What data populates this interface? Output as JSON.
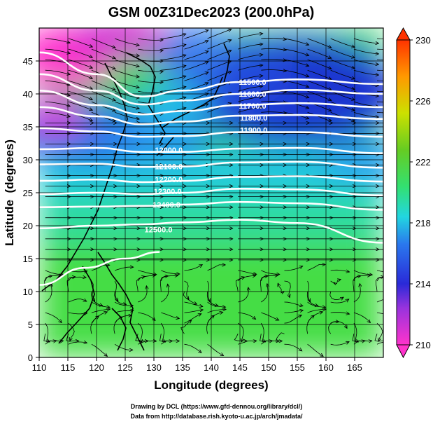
{
  "chart_data": {
    "type": "heatmap",
    "title": "GSM 00Z31Dec2023 (200.0hPa)",
    "xlabel": "Longitude (degrees)",
    "ylabel": "Latitude  (degrees)",
    "xlim": [
      110,
      170
    ],
    "ylim": [
      0,
      50
    ],
    "x_ticks": [
      110,
      115,
      120,
      125,
      130,
      135,
      140,
      145,
      150,
      155,
      160,
      165
    ],
    "y_ticks": [
      0,
      5,
      10,
      15,
      20,
      25,
      30,
      35,
      40,
      45
    ],
    "colorbar": {
      "ticks": [
        210,
        214,
        218,
        222,
        226,
        230
      ],
      "range": [
        210,
        230
      ]
    },
    "color_scale": [
      "#ff33cc",
      "#2a2ad8",
      "#2a78ee",
      "#22d6e0",
      "#33e070",
      "#66cc22",
      "#cce000",
      "#ff9900",
      "#ff3300"
    ],
    "contour_lines": [
      {
        "level": "11500.0",
        "lat_at": [
          [
            110,
            46.3
          ],
          [
            120,
            43.0
          ],
          [
            128,
            39.6
          ],
          [
            135,
            40.5
          ],
          [
            145,
            41.8
          ],
          [
            155,
            42.2
          ],
          [
            170,
            41.5
          ]
        ]
      },
      {
        "level": "11600.0",
        "lat_at": [
          [
            110,
            43.0
          ],
          [
            120,
            40.5
          ],
          [
            128,
            38.4
          ],
          [
            135,
            39.0
          ],
          [
            145,
            40.0
          ],
          [
            155,
            40.6
          ],
          [
            170,
            40.0
          ]
        ]
      },
      {
        "level": "11700.0",
        "lat_at": [
          [
            110,
            40.5
          ],
          [
            120,
            38.3
          ],
          [
            128,
            36.9
          ],
          [
            135,
            37.4
          ],
          [
            145,
            38.3
          ],
          [
            155,
            38.6
          ],
          [
            170,
            38.0
          ]
        ]
      },
      {
        "level": "11800.0",
        "lat_at": [
          [
            110,
            38.0
          ],
          [
            120,
            36.6
          ],
          [
            128,
            35.4
          ],
          [
            135,
            35.8
          ],
          [
            145,
            36.7
          ],
          [
            155,
            36.8
          ],
          [
            170,
            36.2
          ]
        ]
      },
      {
        "level": "11900.0",
        "lat_at": [
          [
            110,
            34.8
          ],
          [
            120,
            34.3
          ],
          [
            128,
            33.5
          ],
          [
            135,
            33.6
          ],
          [
            145,
            34.2
          ],
          [
            155,
            34.2
          ],
          [
            170,
            33.5
          ]
        ]
      },
      {
        "level": "12000.0",
        "lat_at": [
          [
            110,
            31.6
          ],
          [
            120,
            31.8
          ],
          [
            128,
            31.2
          ],
          [
            135,
            31.2
          ],
          [
            145,
            31.7
          ],
          [
            155,
            31.8
          ],
          [
            170,
            31.0
          ]
        ]
      },
      {
        "level": "12100.0",
        "lat_at": [
          [
            110,
            29.3
          ],
          [
            120,
            29.4
          ],
          [
            128,
            28.9
          ],
          [
            135,
            29.0
          ],
          [
            145,
            29.6
          ],
          [
            155,
            29.7
          ],
          [
            170,
            28.8
          ]
        ]
      },
      {
        "level": "12200.0",
        "lat_at": [
          [
            110,
            26.8
          ],
          [
            120,
            27.0
          ],
          [
            128,
            26.6
          ],
          [
            135,
            26.8
          ],
          [
            145,
            27.4
          ],
          [
            155,
            27.5
          ],
          [
            170,
            26.7
          ]
        ]
      },
      {
        "level": "12300.0",
        "lat_at": [
          [
            110,
            24.8
          ],
          [
            120,
            25.0
          ],
          [
            128,
            24.8
          ],
          [
            135,
            25.0
          ],
          [
            145,
            25.6
          ],
          [
            155,
            25.5
          ],
          [
            170,
            24.6
          ]
        ]
      },
      {
        "level": "12400.0",
        "lat_at": [
          [
            110,
            22.8
          ],
          [
            120,
            22.9
          ],
          [
            128,
            23.0
          ],
          [
            135,
            23.2
          ],
          [
            145,
            23.6
          ],
          [
            155,
            23.4
          ],
          [
            170,
            22.4
          ]
        ]
      },
      {
        "level": "12500.0",
        "lat_at": [
          [
            110,
            19.6
          ],
          [
            120,
            20.0
          ],
          [
            128,
            20.2
          ],
          [
            135,
            20.5
          ],
          [
            145,
            20.9
          ],
          [
            155,
            20.4
          ],
          [
            170,
            17.4
          ]
        ]
      },
      {
        "level": "",
        "lat_at": [
          [
            110,
            11.0
          ],
          [
            118,
            13.6
          ],
          [
            125,
            15.0
          ],
          [
            131,
            16.0
          ]
        ]
      }
    ],
    "contour_labels": [
      {
        "text": "11500.0",
        "lon": 147.2,
        "lat": 41.8
      },
      {
        "text": "11600.0",
        "lon": 147.2,
        "lat": 40.0
      },
      {
        "text": "11700.0",
        "lon": 147.2,
        "lat": 38.2
      },
      {
        "text": "11800.0",
        "lon": 147.4,
        "lat": 36.4
      },
      {
        "text": "11900.0",
        "lon": 147.4,
        "lat": 34.5
      },
      {
        "text": "12000.0",
        "lon": 132.6,
        "lat": 31.5
      },
      {
        "text": "12100.0",
        "lon": 132.6,
        "lat": 29.0
      },
      {
        "text": "12200.0",
        "lon": 132.6,
        "lat": 27.0
      },
      {
        "text": "12300.0",
        "lon": 132.4,
        "lat": 25.2
      },
      {
        "text": "12400.0",
        "lon": 132.2,
        "lat": 23.2
      },
      {
        "text": "12500.0",
        "lon": 130.8,
        "lat": 19.4
      }
    ]
  },
  "footer": {
    "line1": "Drawing by DCL (https://www.gfd-dennou.org/library/dcl/)",
    "line2": "Data from http://database.rish.kyoto-u.ac.jp/arch/jmadata/"
  }
}
